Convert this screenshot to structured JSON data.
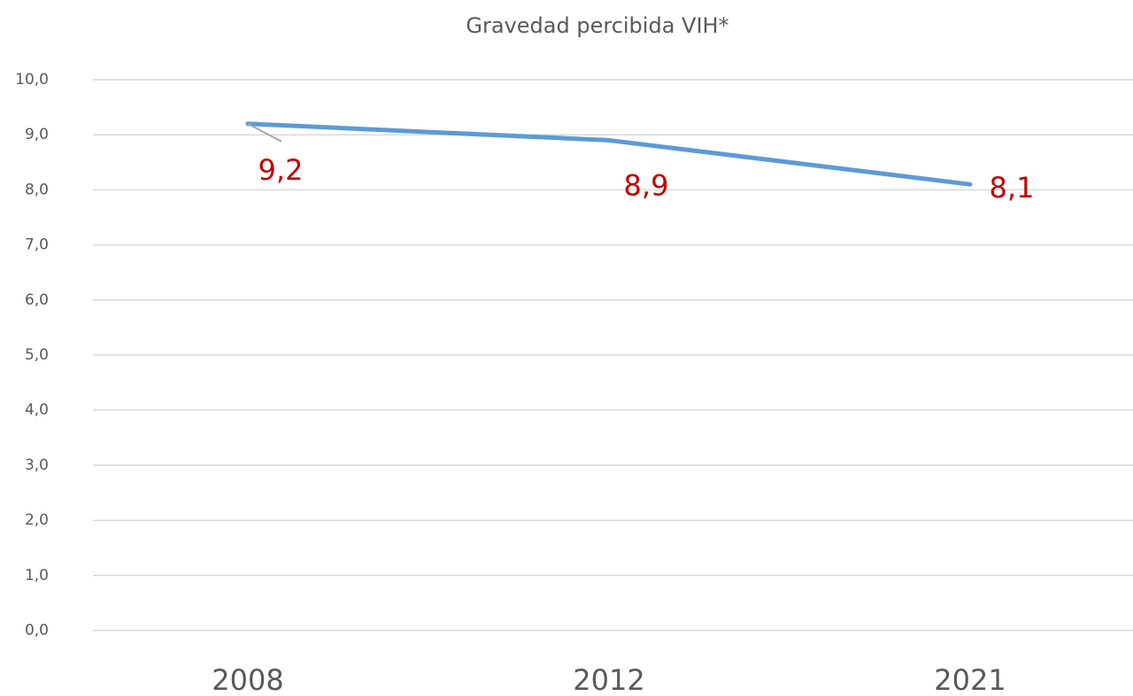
{
  "chart_data": {
    "type": "line",
    "title": "Gravedad percibida VIH*",
    "categories": [
      "2008",
      "2012",
      "2021"
    ],
    "series": [
      {
        "name": "Gravedad percibida VIH",
        "color": "#5b9bd5",
        "values": [
          9.2,
          8.9,
          8.1
        ],
        "value_labels": [
          "9,2",
          "8,9",
          "8,1"
        ],
        "label_color": "#c00000"
      }
    ],
    "ylim": [
      0,
      10
    ],
    "yticks": [
      {
        "value": 0,
        "label": "0,0"
      },
      {
        "value": 1,
        "label": "1,0"
      },
      {
        "value": 2,
        "label": "2,0"
      },
      {
        "value": 3,
        "label": "3,0"
      },
      {
        "value": 4,
        "label": "4,0"
      },
      {
        "value": 5,
        "label": "5,0"
      },
      {
        "value": 6,
        "label": "6,0"
      },
      {
        "value": 7,
        "label": "7,0"
      },
      {
        "value": 8,
        "label": "8,0"
      },
      {
        "value": 9,
        "label": "9,0"
      },
      {
        "value": 10,
        "label": "10,0"
      }
    ],
    "grid": true
  }
}
